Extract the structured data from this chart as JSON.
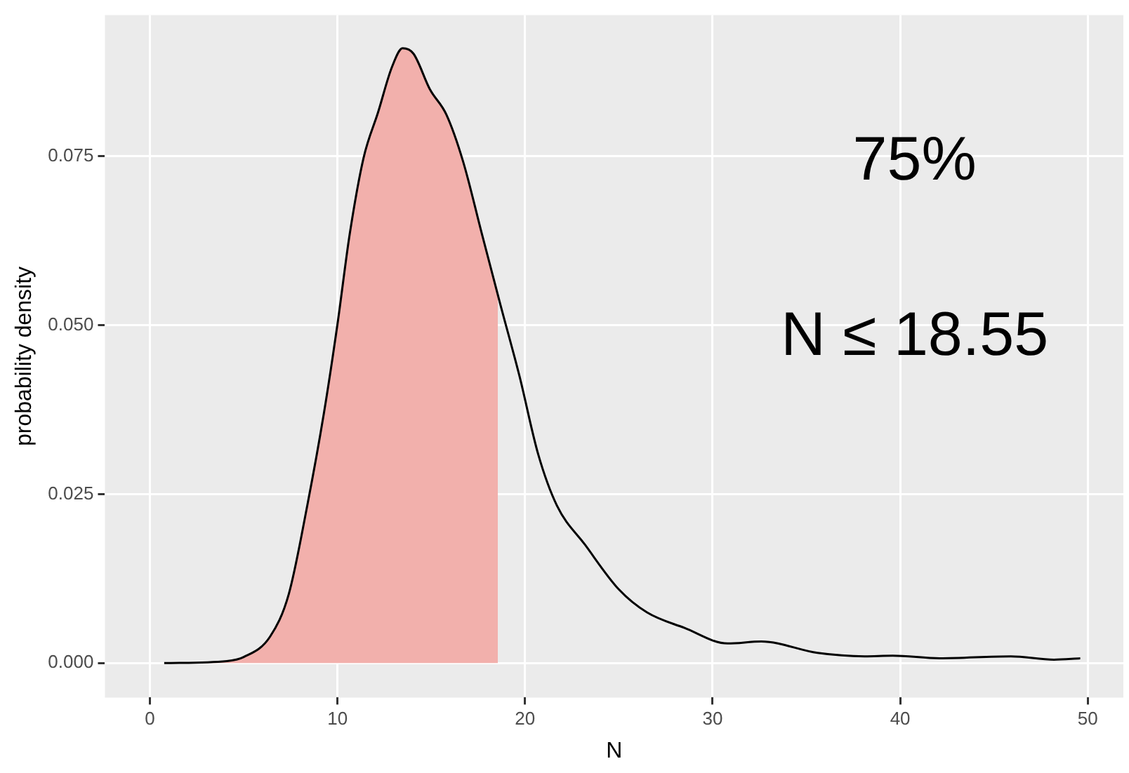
{
  "chart_data": {
    "type": "line",
    "xlabel": "N",
    "ylabel": "probability density",
    "annotations": [
      "75%",
      "N ≤ 18.55"
    ],
    "xlim": [
      -2.4,
      51.9
    ],
    "xticks": [
      0,
      10,
      20,
      30,
      40,
      50
    ],
    "ylim": [
      -0.0051,
      0.0959
    ],
    "yticks": [
      {
        "value": 0,
        "label": "0.000"
      },
      {
        "value": 0.025,
        "label": "0.025"
      },
      {
        "value": 0.05,
        "label": "0.050"
      },
      {
        "value": 0.075,
        "label": "0.075"
      }
    ],
    "grid": true,
    "legend": false,
    "marker": "none",
    "series": [
      {
        "type": "area",
        "color": "#f2b0ac",
        "x": [
          0.76,
          4.1,
          5,
          6.4,
          7.4,
          8.4,
          9.27,
          10,
          10.65,
          11.4,
          12.16,
          12.9,
          13.47,
          14.05,
          14.93,
          15.8,
          16.7,
          17.7,
          18.55
        ],
        "values": [
          0,
          0.0003,
          0.0009,
          0.0039,
          0.0102,
          0.0235,
          0.0369,
          0.0502,
          0.0635,
          0.0749,
          0.0815,
          0.0882,
          0.091,
          0.0902,
          0.0849,
          0.0812,
          0.0742,
          0.0635,
          0.0551
        ]
      },
      {
        "color": "#000000",
        "x": [
          0.76,
          4.1,
          5,
          6.4,
          7.4,
          8.4,
          9.27,
          10,
          10.65,
          11.4,
          12.16,
          12.9,
          13.47,
          14.05,
          14.93,
          15.8,
          16.7,
          17.7,
          18.7,
          19.7,
          20.7,
          21.7,
          23.2,
          25.0,
          26.5,
          28.5,
          30.8,
          32.6,
          35.6,
          38.1,
          39.6,
          42.1,
          45.9,
          48.2,
          49.6
        ],
        "values": [
          0,
          0.0003,
          0.0009,
          0.0039,
          0.0102,
          0.0235,
          0.0369,
          0.0502,
          0.0635,
          0.0749,
          0.0815,
          0.0882,
          0.091,
          0.0902,
          0.0849,
          0.0812,
          0.0742,
          0.0635,
          0.0529,
          0.0425,
          0.0309,
          0.0233,
          0.0175,
          0.0109,
          0.0075,
          0.0052,
          0.0029,
          0.0032,
          0.0015,
          0.001,
          0.0011,
          0.0007,
          0.001,
          0.0005,
          0.0007
        ]
      }
    ]
  }
}
